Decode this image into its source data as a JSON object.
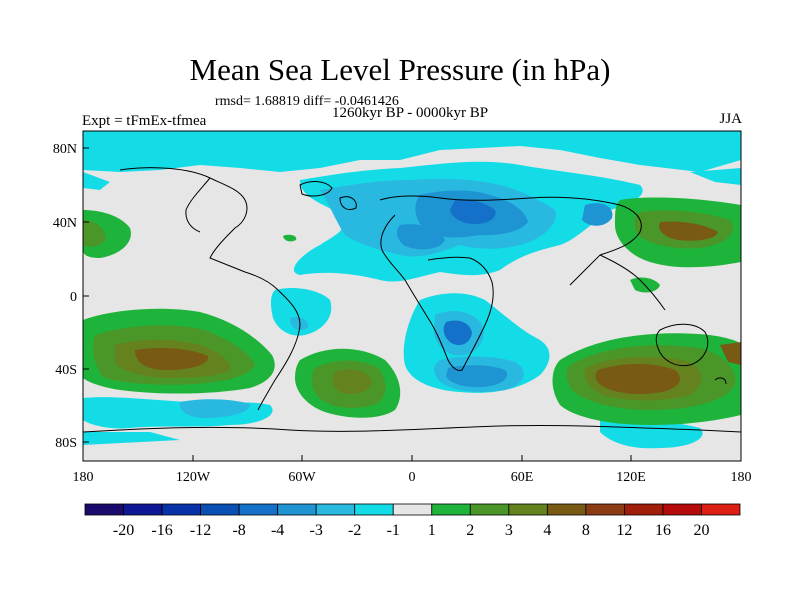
{
  "title": "Mean Sea Level Pressure (in hPa)",
  "stats": "rmsd= 1.68819 diff= -0.0461426",
  "period": "1260kyr BP - 0000kyr BP",
  "experiment": "Expt = tFmEx-tfmea",
  "season": "JJA",
  "axes": {
    "lat_ticks": [
      "80N",
      "40N",
      "0",
      "40S",
      "80S"
    ],
    "lon_ticks": [
      "180",
      "120W",
      "60W",
      "0",
      "60E",
      "120E",
      "180"
    ]
  },
  "colorbar": {
    "labels": [
      "-20",
      "-16",
      "-12",
      "-8",
      "-4",
      "-3",
      "-2",
      "-1",
      "1",
      "2",
      "3",
      "4",
      "8",
      "12",
      "16",
      "20"
    ],
    "colors": [
      "#1a0a6e",
      "#0e1896",
      "#0a32a8",
      "#0a50b4",
      "#1470c8",
      "#1e94d2",
      "#28b8e0",
      "#14dce6",
      "#e6e6e6",
      "#1eb43c",
      "#4b9628",
      "#64821e",
      "#785a14",
      "#8c3c14",
      "#a01e0a",
      "#b40a0a",
      "#dc1e14"
    ]
  },
  "colors": {
    "land_outline": "#000000",
    "neutral": "#e6e6e6"
  }
}
